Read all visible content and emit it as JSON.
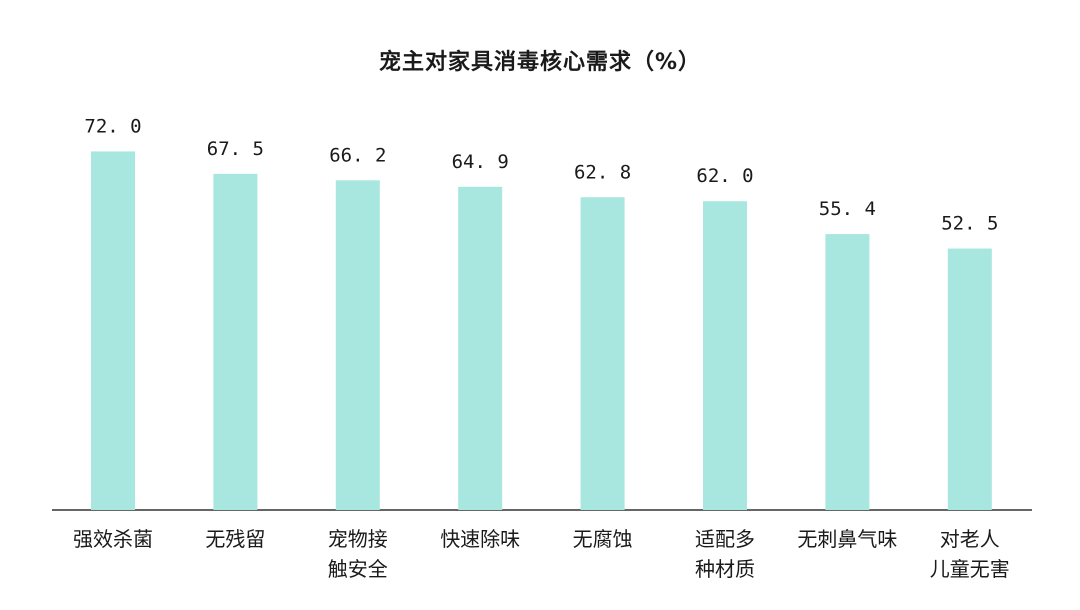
{
  "chart_data": {
    "type": "bar",
    "title": "宠主对家具消毒核心需求（%）",
    "xlabel": "",
    "ylabel": "",
    "ylim": [
      0,
      80
    ],
    "grid": false,
    "legend": "none",
    "categories": [
      [
        "强效杀菌"
      ],
      [
        "无残留"
      ],
      [
        "宠物接",
        "触安全"
      ],
      [
        "快速除味"
      ],
      [
        "无腐蚀"
      ],
      [
        "适配多",
        "种材质"
      ],
      [
        "无刺鼻气味"
      ],
      [
        "对老人",
        "儿童无害"
      ]
    ],
    "values": [
      72.0,
      67.5,
      66.2,
      64.9,
      62.8,
      62.0,
      55.4,
      52.5
    ],
    "value_labels": [
      "72. 0",
      "67. 5",
      "66. 2",
      "64. 9",
      "62. 8",
      "62. 0",
      "55. 4",
      "52. 5"
    ],
    "colors": {
      "bar": "#a8e6e0",
      "axis": "#333333",
      "text": "#1a1a1a"
    }
  }
}
